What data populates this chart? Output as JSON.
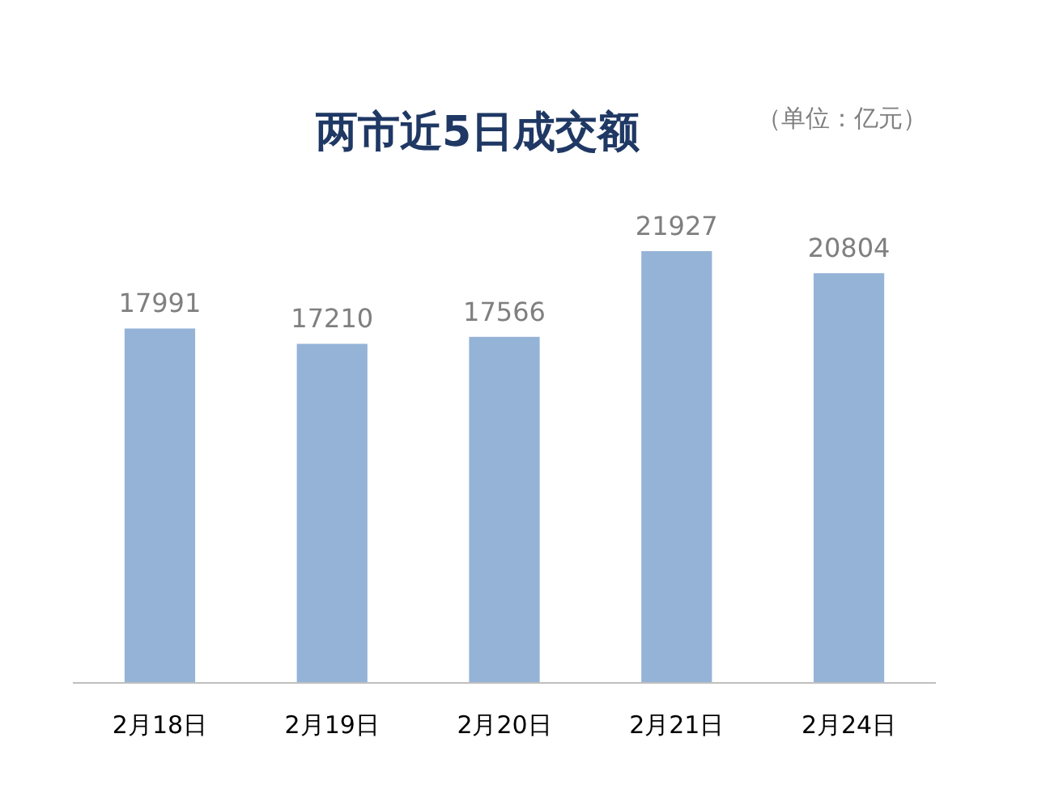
{
  "chart_data": {
    "type": "bar",
    "title": "两市近5日成交额",
    "subtitle": "（单位：亿元）",
    "categories": [
      "2月18日",
      "2月19日",
      "2月20日",
      "2月21日",
      "2月24日"
    ],
    "values": [
      17991,
      17210,
      17566,
      21927,
      20804
    ],
    "color": "#95b3d7",
    "data_labels": true
  }
}
